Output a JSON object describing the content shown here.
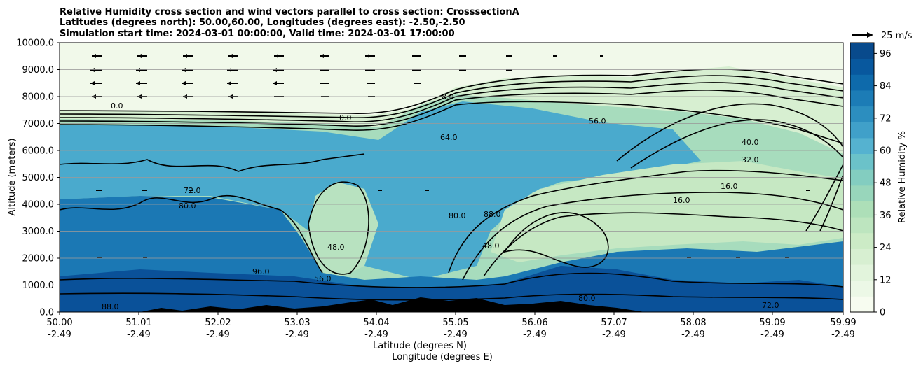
{
  "chart_data": {
    "type": "contour",
    "title_lines": [
      "Relative Humidity cross section and wind vectors parallel to cross section: CrosssectionA",
      "Latitudes (degrees north): 50.00,60.00, Longitudes (degrees east): -2.50,-2.50",
      "Simulation start time: 2024-03-01 00:00:00, Valid time: 2024-03-01 17:00:00"
    ],
    "ylabel": "Altitude (meters)",
    "xlabel_lat": "Latitude (degrees N)",
    "xlabel_lon": "Longitude (degrees E)",
    "ylim": [
      0,
      10000
    ],
    "y_ticks": [
      "0.0",
      "1000.0",
      "2000.0",
      "3000.0",
      "4000.0",
      "5000.0",
      "6000.0",
      "7000.0",
      "8000.0",
      "9000.0",
      "10000.0"
    ],
    "x_ticks": [
      {
        "lat": "50.00",
        "lon": "-2.49"
      },
      {
        "lat": "51.01",
        "lon": "-2.49"
      },
      {
        "lat": "52.02",
        "lon": "-2.49"
      },
      {
        "lat": "53.03",
        "lon": "-2.49"
      },
      {
        "lat": "54.04",
        "lon": "-2.49"
      },
      {
        "lat": "55.05",
        "lon": "-2.49"
      },
      {
        "lat": "56.06",
        "lon": "-2.49"
      },
      {
        "lat": "57.07",
        "lon": "-2.49"
      },
      {
        "lat": "58.08",
        "lon": "-2.49"
      },
      {
        "lat": "59.09",
        "lon": "-2.49"
      },
      {
        "lat": "59.99",
        "lon": "-2.49"
      }
    ],
    "colorbar": {
      "label": "Relative Humidity %",
      "ticks": [
        "0",
        "12",
        "24",
        "36",
        "48",
        "60",
        "72",
        "84",
        "96"
      ],
      "range": [
        0,
        100
      ],
      "colors": [
        "#f7fcf0",
        "#ecf8e6",
        "#e2f4dc",
        "#d7efd1",
        "#ccebc6",
        "#bde5bf",
        "#addfb8",
        "#98d6bb",
        "#83cdc0",
        "#6bc2c9",
        "#55b2d0",
        "#40a0c9",
        "#2c8ebf",
        "#1c7cb6",
        "#0e6aab",
        "#08589e",
        "#084a8c"
      ]
    },
    "quiver_key": "25 m/s",
    "contour_labels": [
      "96.0",
      "88.0",
      "80.0",
      "72.0",
      "64.0",
      "56.0",
      "48.0",
      "40.0",
      "32.0",
      "16.0",
      "8.0",
      "0.0"
    ]
  }
}
